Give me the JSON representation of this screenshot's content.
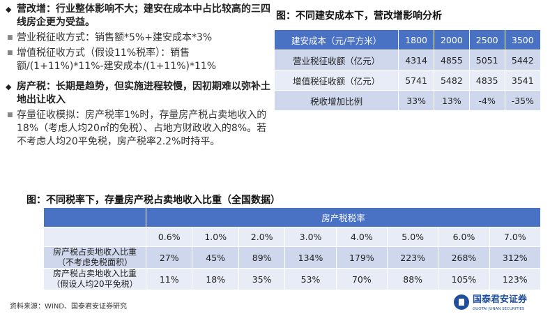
{
  "left": {
    "points": [
      {
        "text": "营改增：行业整体影响不大；建安在成本中占比较高的三四线房企更为受益。",
        "subs": [
          "营业税征收方式：销售额*5%+建安成本*3%",
          "增值税征收方式（假设11%税率）：销售额/(1+11%)*11%-建安成本/(1+11%)*11%"
        ]
      },
      {
        "text": "房产税：长期是趋势，但实施进程较慢，因初期难以弥补土地出让收入",
        "subs": [
          "存量征收模拟：房产税率1%时，存量房产税占卖地收入的18%（考虑人均20㎡的免税）、占地方财政收入的8%。若不考虑人均20平免税，房产税率2.2%时持平。"
        ]
      }
    ]
  },
  "table1": {
    "title": "图：不同建安成本下，营改增影响分析",
    "header": [
      "建安成本（元/平方米）",
      "1800",
      "2000",
      "2500",
      "3500"
    ],
    "rows": [
      [
        "营业税征收额（亿元）",
        "4314",
        "4855",
        "5051",
        "5442"
      ],
      [
        "增值税征收额（亿元）",
        "5741",
        "5482",
        "4835",
        "3541"
      ],
      [
        "税收增加比例",
        "33%",
        "13%",
        "-4%",
        "-35%"
      ]
    ]
  },
  "table2": {
    "title": "图：不同税率下，存量房产税占卖地收入比重（全国数据）",
    "group": "房产税税率",
    "rates": [
      "0.6%",
      "1.0%",
      "2.0%",
      "3.0%",
      "4.0%",
      "5.0%",
      "6.0%",
      "7.0%"
    ],
    "rows": [
      [
        "房产税占卖地收入比重（不考虑免税面积）",
        "27%",
        "45%",
        "89%",
        "134%",
        "179%",
        "223%",
        "268%",
        "312%"
      ],
      [
        "房产税占卖地收入比重（假设人均20平免税）",
        "11%",
        "18%",
        "35%",
        "53%",
        "70%",
        "88%",
        "105%",
        "123%"
      ]
    ]
  },
  "footer": {
    "source": "资料来源：WIND、国泰君安证券研究",
    "brand": "国泰君安证券",
    "brand_en": "GUOTAI JUNAN SECURITIES"
  }
}
